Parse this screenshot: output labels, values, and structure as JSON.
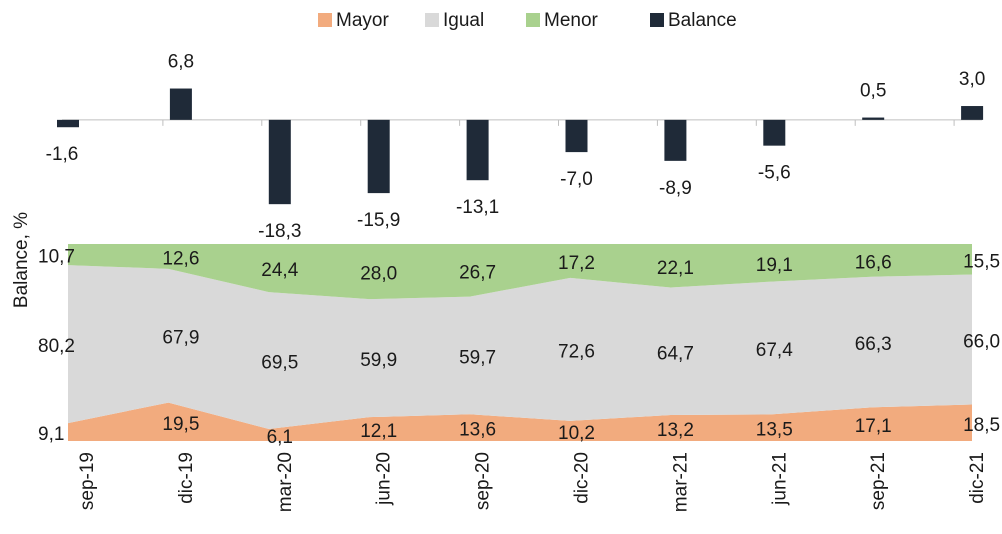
{
  "chart_data": {
    "type": "combo",
    "y_label": "Balance, %",
    "categories": [
      "sep-19",
      "dic-19",
      "mar-20",
      "jun-20",
      "sep-20",
      "dic-20",
      "mar-21",
      "jun-21",
      "sep-21",
      "dic-21"
    ],
    "ylim": [
      -20,
      8
    ],
    "y2lim": [
      0,
      100
    ],
    "stacked": true,
    "series": [
      {
        "name": "Mayor",
        "type": "area",
        "axis": "y2",
        "color": "#f2ab7e",
        "values": [
          9.1,
          19.5,
          6.1,
          12.1,
          13.6,
          10.2,
          13.2,
          13.5,
          17.1,
          18.5
        ],
        "value_labels": [
          "9,1",
          "19,5",
          "6,1",
          "12,1",
          "13,6",
          "10,2",
          "13,2",
          "13,5",
          "17,1",
          "18,5"
        ]
      },
      {
        "name": "Igual",
        "type": "area",
        "axis": "y2",
        "color": "#d9d9d9",
        "values": [
          80.2,
          67.9,
          69.5,
          59.9,
          59.7,
          72.6,
          64.7,
          67.4,
          66.3,
          66.0
        ],
        "value_labels": [
          "80,2",
          "67,9",
          "69,5",
          "59,9",
          "59,7",
          "72,6",
          "64,7",
          "67,4",
          "66,3",
          "66,0"
        ]
      },
      {
        "name": "Menor",
        "type": "area",
        "axis": "y2",
        "color": "#a9d18e",
        "values": [
          10.7,
          12.6,
          24.4,
          28.0,
          26.7,
          17.2,
          22.1,
          19.1,
          16.6,
          15.5
        ],
        "value_labels": [
          "10,7",
          "12,6",
          "24,4",
          "28,0",
          "26,7",
          "17,2",
          "22,1",
          "19,1",
          "16,6",
          "15,5"
        ]
      },
      {
        "name": "Balance",
        "type": "bar",
        "color": "#1f2a38",
        "values": [
          -1.6,
          6.8,
          -18.3,
          -15.9,
          -13.1,
          -7.0,
          -8.9,
          -5.6,
          0.5,
          3.0
        ],
        "value_labels": [
          "-1,6",
          "6,8",
          "-18,3",
          "-15,9",
          "-13,1",
          "-7,0",
          "-8,9",
          "-5,6",
          "0,5",
          "3,0"
        ]
      }
    ]
  }
}
